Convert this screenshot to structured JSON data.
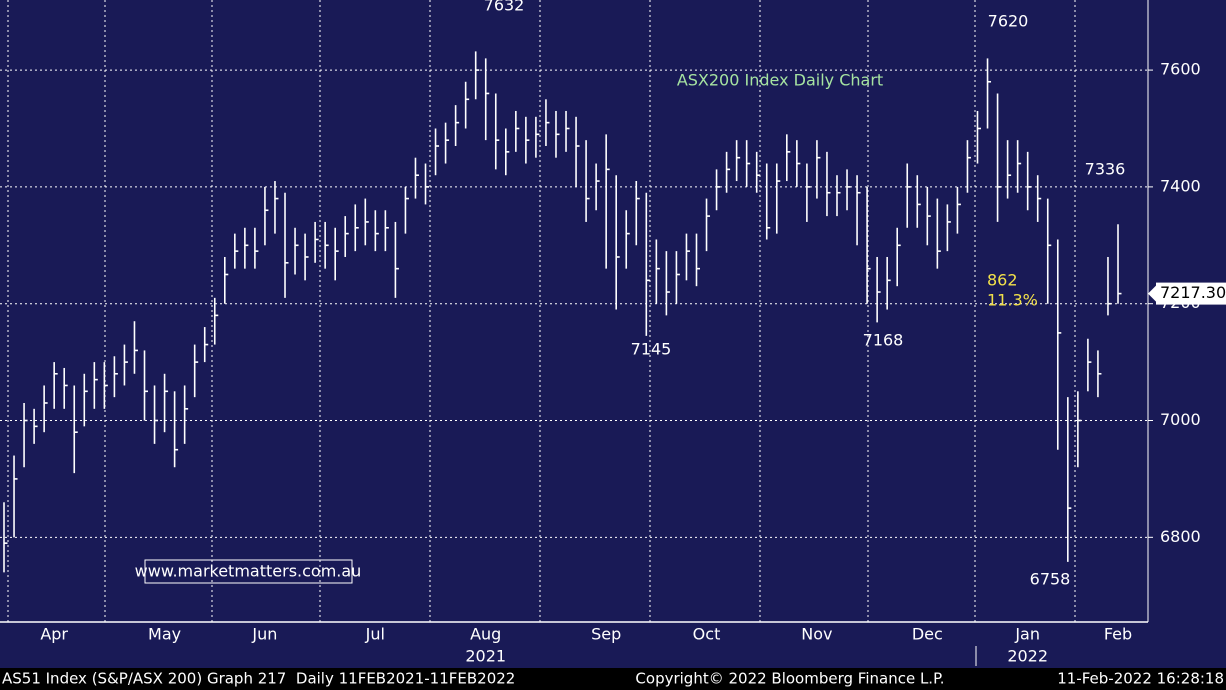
{
  "chart_data": {
    "type": "ohlc",
    "title": "ASX200 Index Daily Chart",
    "categories": [
      null,
      null,
      null,
      null,
      null,
      "Apr",
      null,
      null,
      null,
      null,
      null,
      null,
      null,
      null,
      null,
      null,
      "May",
      null,
      null,
      null,
      null,
      null,
      null,
      null,
      null,
      null,
      "Jun",
      null,
      null,
      null,
      null,
      null,
      null,
      null,
      null,
      null,
      null,
      "Jul",
      null,
      null,
      null,
      null,
      null,
      null,
      null,
      null,
      null,
      null,
      "Aug",
      null,
      null,
      null,
      null,
      null,
      null,
      null,
      null,
      null,
      null,
      null,
      "Sep",
      null,
      null,
      null,
      null,
      null,
      null,
      null,
      null,
      null,
      "Oct",
      null,
      null,
      null,
      null,
      null,
      null,
      null,
      null,
      null,
      null,
      "Nov",
      null,
      null,
      null,
      null,
      null,
      null,
      null,
      null,
      null,
      null,
      "Dec",
      null,
      null,
      null,
      null,
      null,
      null,
      null,
      null,
      null,
      "Jan",
      null,
      null,
      null,
      null,
      null,
      null,
      null,
      null,
      "Feb"
    ],
    "year_categories": [
      null,
      null,
      null,
      null,
      null,
      null,
      null,
      null,
      null,
      null,
      null,
      null,
      null,
      null,
      null,
      null,
      null,
      null,
      null,
      null,
      null,
      null,
      null,
      null,
      null,
      null,
      null,
      null,
      null,
      null,
      null,
      null,
      null,
      null,
      null,
      null,
      null,
      null,
      null,
      null,
      null,
      null,
      null,
      null,
      null,
      null,
      null,
      null,
      "2021",
      null,
      null,
      null,
      null,
      null,
      null,
      null,
      null,
      null,
      null,
      null,
      null,
      null,
      null,
      null,
      null,
      null,
      null,
      null,
      null,
      null,
      null,
      null,
      null,
      null,
      null,
      null,
      null,
      null,
      null,
      null,
      null,
      null,
      null,
      null,
      null,
      null,
      null,
      null,
      null,
      null,
      null,
      null,
      null,
      null,
      null,
      null,
      null,
      null,
      null,
      null,
      null,
      null,
      "2022",
      null,
      null,
      null,
      null,
      null,
      null,
      null,
      null,
      null
    ],
    "high": [
      6860,
      6940,
      7030,
      7020,
      7060,
      7100,
      7090,
      7060,
      7080,
      7100,
      7100,
      7110,
      7130,
      7170,
      7120,
      7060,
      7080,
      7050,
      7060,
      7130,
      7160,
      7210,
      7280,
      7320,
      7330,
      7330,
      7400,
      7410,
      7390,
      7330,
      7320,
      7340,
      7340,
      7330,
      7350,
      7370,
      7380,
      7360,
      7360,
      7340,
      7400,
      7450,
      7440,
      7500,
      7510,
      7540,
      7580,
      7632,
      7620,
      7560,
      7500,
      7530,
      7520,
      7520,
      7550,
      7530,
      7530,
      7520,
      7480,
      7440,
      7490,
      7420,
      7360,
      7410,
      7390,
      7310,
      7290,
      7290,
      7320,
      7320,
      7380,
      7430,
      7460,
      7480,
      7480,
      7460,
      7440,
      7440,
      7490,
      7480,
      7440,
      7480,
      7460,
      7420,
      7430,
      7420,
      7400,
      7280,
      7280,
      7330,
      7440,
      7420,
      7400,
      7380,
      7370,
      7400,
      7480,
      7530,
      7620,
      7560,
      7480,
      7480,
      7460,
      7420,
      7380,
      7310,
      7040,
      7050,
      7140,
      7120,
      7280,
      7336
    ],
    "low": [
      6740,
      6800,
      6920,
      6960,
      6980,
      7020,
      7020,
      6910,
      6990,
      7020,
      7020,
      7040,
      7060,
      7080,
      7000,
      6960,
      6980,
      6920,
      6960,
      7040,
      7100,
      7130,
      7200,
      7260,
      7260,
      7260,
      7300,
      7320,
      7210,
      7250,
      7240,
      7270,
      7260,
      7240,
      7280,
      7290,
      7300,
      7290,
      7290,
      7210,
      7320,
      7380,
      7370,
      7420,
      7440,
      7470,
      7500,
      7550,
      7480,
      7430,
      7420,
      7460,
      7440,
      7450,
      7470,
      7450,
      7460,
      7400,
      7340,
      7360,
      7260,
      7190,
      7260,
      7300,
      7145,
      7200,
      7180,
      7200,
      7240,
      7230,
      7290,
      7360,
      7390,
      7410,
      7400,
      7390,
      7310,
      7320,
      7410,
      7400,
      7340,
      7380,
      7350,
      7350,
      7360,
      7300,
      7200,
      7168,
      7190,
      7230,
      7330,
      7330,
      7300,
      7260,
      7290,
      7320,
      7390,
      7440,
      7500,
      7340,
      7380,
      7390,
      7360,
      7340,
      7200,
      6950,
      6758,
      6920,
      7050,
      7040,
      7180,
      7200
    ],
    "close": [
      6790,
      6900,
      7000,
      6990,
      7030,
      7080,
      7060,
      6980,
      7050,
      7070,
      7060,
      7080,
      7100,
      7120,
      7050,
      7000,
      7050,
      6950,
      7020,
      7100,
      7130,
      7180,
      7250,
      7290,
      7300,
      7290,
      7360,
      7380,
      7270,
      7300,
      7280,
      7310,
      7300,
      7290,
      7320,
      7330,
      7340,
      7320,
      7330,
      7260,
      7380,
      7420,
      7400,
      7470,
      7480,
      7510,
      7550,
      7600,
      7560,
      7480,
      7460,
      7500,
      7480,
      7490,
      7510,
      7490,
      7500,
      7470,
      7380,
      7410,
      7430,
      7280,
      7320,
      7380,
      7240,
      7260,
      7220,
      7250,
      7290,
      7260,
      7350,
      7400,
      7430,
      7450,
      7440,
      7420,
      7330,
      7410,
      7460,
      7440,
      7400,
      7450,
      7390,
      7390,
      7400,
      7390,
      7260,
      7220,
      7240,
      7300,
      7400,
      7370,
      7350,
      7290,
      7340,
      7370,
      7450,
      7500,
      7580,
      7400,
      7420,
      7440,
      7400,
      7380,
      7300,
      7150,
      6850,
      7000,
      7100,
      7080,
      7200,
      7217.3
    ],
    "color": "#ffffff",
    "ylim": [
      6655,
      7720
    ],
    "yticks": [
      6800,
      7000,
      7200,
      7400,
      7600
    ],
    "grid": true,
    "last_price": {
      "value": 7217.3,
      "label": "7217.300"
    },
    "price_labels": [
      7632,
      7620,
      7336,
      7145,
      7168,
      6758
    ],
    "drop_points": 862,
    "drop_percent": {
      "value": 11.3,
      "label": "11.3%"
    },
    "website": "www.marketmatters.com.au",
    "footer_left": "AS51 Index (S&P/ASX 200) Graph 217  Daily 11FEB2021-11FEB2022",
    "footer_center": "Copyright© 2022 Bloomberg Finance L.P.",
    "footer_right": "11-Feb-2022 16:28:18"
  }
}
